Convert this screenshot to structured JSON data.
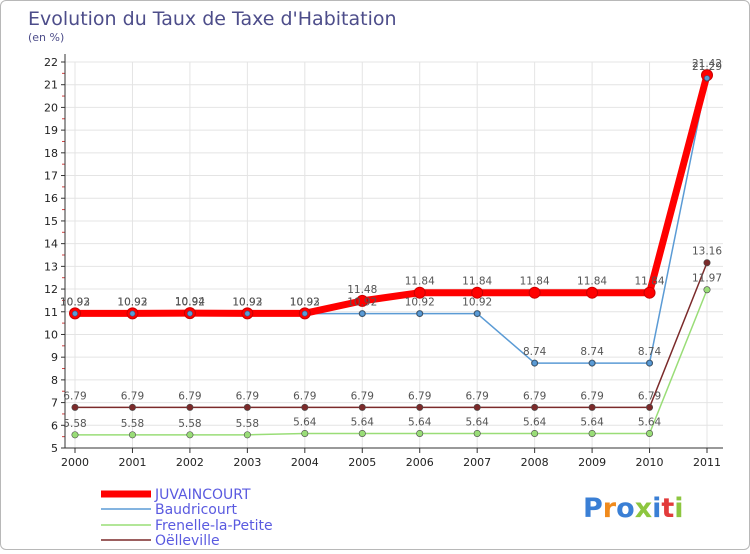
{
  "chart_data": {
    "type": "line",
    "title": "Evolution du Taux de Taxe d'Habitation",
    "subtitle": "(en %)",
    "xlabel": "",
    "ylabel": "(en %)",
    "ylim": [
      5,
      22
    ],
    "grid": true,
    "categories": [
      "2000",
      "2001",
      "2002",
      "2003",
      "2004",
      "2005",
      "2006",
      "2007",
      "2008",
      "2009",
      "2010",
      "2011"
    ],
    "yticks": [
      "5",
      "6",
      "7",
      "8",
      "9",
      "10",
      "11",
      "12",
      "13",
      "14",
      "15",
      "16",
      "17",
      "18",
      "19",
      "20",
      "21",
      "22"
    ],
    "series": [
      {
        "name": "JUVAINCOURT",
        "color": "#ff0000",
        "values": [
          10.93,
          10.93,
          10.94,
          10.93,
          10.93,
          11.48,
          11.84,
          11.84,
          11.84,
          11.84,
          11.84,
          21.42
        ],
        "labels": [
          "10.93",
          "10.93",
          "10.94",
          "10.93",
          "10.93",
          "11.48",
          "11.84",
          "11.84",
          "11.84",
          "11.84",
          "11.84",
          "21.42"
        ]
      },
      {
        "name": "Baudricourt",
        "color": "#5b9bd5",
        "values": [
          10.92,
          10.92,
          10.92,
          10.92,
          10.92,
          10.92,
          10.92,
          10.92,
          8.74,
          8.74,
          8.74,
          21.29
        ],
        "labels": [
          "10.92",
          "10.92",
          "10.92",
          "10.92",
          "10.92",
          "10.92",
          "10.92",
          "10.92",
          "8.74",
          "8.74",
          "8.74",
          "21.29"
        ]
      },
      {
        "name": "Frenelle-la-Petite",
        "color": "#99dd77",
        "values": [
          5.58,
          5.58,
          5.58,
          5.58,
          5.64,
          5.64,
          5.64,
          5.64,
          5.64,
          5.64,
          5.64,
          11.97
        ],
        "labels": [
          "5.58",
          "5.58",
          "5.58",
          "5.58",
          "5.64",
          "5.64",
          "5.64",
          "5.64",
          "5.64",
          "5.64",
          "5.64",
          "11.97"
        ]
      },
      {
        "name": "Oëlleville",
        "color": "#7b2a2a",
        "values": [
          6.79,
          6.79,
          6.79,
          6.79,
          6.79,
          6.79,
          6.79,
          6.79,
          6.79,
          6.79,
          6.79,
          13.16
        ],
        "labels": [
          "6.79",
          "6.79",
          "6.79",
          "6.79",
          "6.79",
          "6.79",
          "6.79",
          "6.79",
          "6.79",
          "6.79",
          "6.79",
          "13.16"
        ]
      }
    ]
  },
  "logo": {
    "text": "Proxiti",
    "letters": [
      "P",
      "r",
      "o",
      "x",
      "i",
      "t",
      "i"
    ],
    "colors": [
      "#3a7fd5",
      "#f08a1c",
      "#3a7fd5",
      "#8dc63f",
      "#3a7fd5",
      "#e23b3b",
      "#8dc63f"
    ]
  }
}
